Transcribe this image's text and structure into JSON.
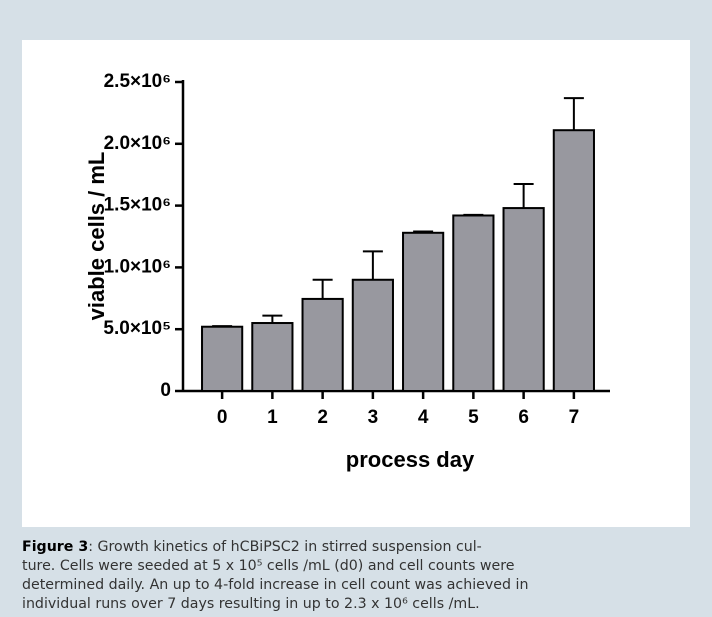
{
  "chart_data": {
    "type": "bar",
    "x_label": "process day",
    "y_label": "viable cells / mL",
    "categories": [
      "0",
      "1",
      "2",
      "3",
      "4",
      "5",
      "6",
      "7"
    ],
    "values": [
      520000,
      550000,
      745000,
      900000,
      1280000,
      1420000,
      1480000,
      2110000
    ],
    "errors": [
      5000,
      60000,
      155000,
      230000,
      10000,
      5000,
      195000,
      260000
    ],
    "color": "#98989f",
    "ylim": [
      0,
      2500000
    ],
    "yticks": [
      0,
      {
        "value": 500000,
        "label": "5.0×10⁵"
      },
      {
        "value": 1000000,
        "label": "1.0×10⁶"
      },
      {
        "value": 1500000,
        "label": "1.5×10⁶"
      },
      {
        "value": 2000000,
        "label": "2.0×10⁶"
      },
      {
        "value": 2500000,
        "label": "2.5×10⁶"
      }
    ]
  },
  "caption": {
    "label": "Figure 3",
    "lines": [
      ": Growth kinetics of hCBiPSC2 in stirred suspension cul-",
      "ture. Cells were seeded at 5 x 10⁵ cells /mL (d0) and cell counts were",
      "determined daily. An up to 4-fold increase in cell count was achieved in",
      "individual runs over 7 days resulting in up to 2.3 x 10⁶ cells /mL."
    ]
  }
}
